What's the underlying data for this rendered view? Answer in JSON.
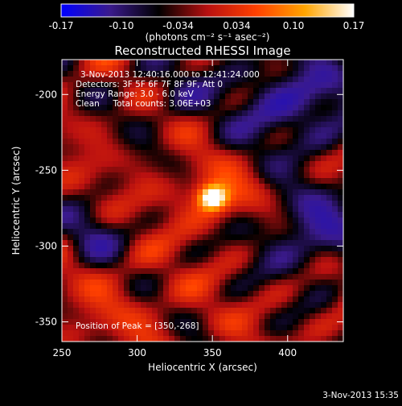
{
  "chart_data": {
    "type": "heatmap",
    "title": "Reconstructed RHESSI Image",
    "xlabel": "Heliocentric X (arcsec)",
    "ylabel": "Heliocentric Y (arcsec)",
    "xlim": [
      250,
      437
    ],
    "ylim": [
      -363,
      -177
    ],
    "x_ticks": [
      250,
      300,
      350,
      400
    ],
    "y_ticks": [
      -200,
      -250,
      -300,
      -350
    ],
    "colorbar": {
      "range": [
        -0.17,
        0.17
      ],
      "ticks": [
        "-0.17",
        "-0.10",
        "-0.034",
        "0.034",
        "0.10",
        "0.17"
      ],
      "tick_values": [
        -0.17,
        -0.1,
        -0.034,
        0.034,
        0.1,
        0.17
      ],
      "units_label": "(photons cm⁻² s⁻¹ asec⁻²)",
      "colormap": [
        "#0000ff",
        "#3a1a8c",
        "#000000",
        "#b81010",
        "#ff4000",
        "#ffa500",
        "#ffffff"
      ]
    },
    "annotations": [
      "3-Nov-2013 12:40:16.000 to 12:41:24.000",
      "Detectors: 3F 5F 6F 7F 8F 9F, Att 0",
      "Energy Range: 3.0 - 6.0 keV",
      "Clean     Total counts: 3.06E+03"
    ],
    "peak_label": "Position of Peak = [350,-268]",
    "peak": {
      "x": 350,
      "y": -268,
      "value": 0.17
    }
  },
  "footer_timestamp": "3-Nov-2013 15:35"
}
